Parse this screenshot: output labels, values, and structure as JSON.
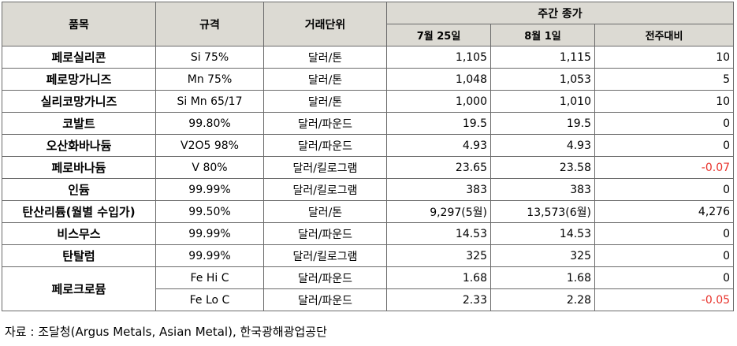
{
  "headers": {
    "item": "품목",
    "spec": "규격",
    "unit": "거래단위",
    "weekly": "주간 종가",
    "date1": "7월 25일",
    "date2": "8월 1일",
    "change": "전주대비"
  },
  "rows": [
    {
      "item": "페로실리콘",
      "spec": "Si 75%",
      "unit": "달러/톤",
      "p1": "1,105",
      "p2": "1,115",
      "chg": "10"
    },
    {
      "item": "페로망가니즈",
      "spec": "Mn 75%",
      "unit": "달러/톤",
      "p1": "1,048",
      "p2": "1,053",
      "chg": "5"
    },
    {
      "item": "실리코망가니즈",
      "spec": "Si Mn 65/17",
      "unit": "달러/톤",
      "p1": "1,000",
      "p2": "1,010",
      "chg": "10"
    },
    {
      "item": "코발트",
      "spec": "99.80%",
      "unit": "달러/파운드",
      "p1": "19.5",
      "p2": "19.5",
      "chg": "0"
    },
    {
      "item": "오산화바나듐",
      "spec": "V2O5 98%",
      "unit": "달러/파운드",
      "p1": "4.93",
      "p2": "4.93",
      "chg": "0"
    },
    {
      "item": "페로바나듐",
      "spec": "V 80%",
      "unit": "달러/킬로그램",
      "p1": "23.65",
      "p2": "23.58",
      "chg": "-0.07"
    },
    {
      "item": "인듐",
      "spec": "99.99%",
      "unit": "달러/킬로그램",
      "p1": "383",
      "p2": "383",
      "chg": "0"
    },
    {
      "item": "탄산리튬(월별 수입가)",
      "spec": "99.50%",
      "unit": "달러/톤",
      "p1": "9,297(5월)",
      "p2": "13,573(6월)",
      "chg": "4,276"
    },
    {
      "item": "비스무스",
      "spec": "99.99%",
      "unit": "달러/파운드",
      "p1": "14.53",
      "p2": "14.53",
      "chg": "0"
    },
    {
      "item": "탄탈럼",
      "spec": "99.99%",
      "unit": "달러/킬로그램",
      "p1": "325",
      "p2": "325",
      "chg": "0"
    }
  ],
  "ferrochrome": {
    "item": "페로크로뮴",
    "rows": [
      {
        "spec": "Fe Hi C",
        "unit": "달러/파운드",
        "p1": "1.68",
        "p2": "1.68",
        "chg": "0"
      },
      {
        "spec": "Fe Lo C",
        "unit": "달러/파운드",
        "p1": "2.33",
        "p2": "2.28",
        "chg": "-0.05"
      }
    ]
  },
  "colors": {
    "header_bg": "#dcdad3",
    "negative": "#e8322b",
    "border": "#6b6b6b"
  },
  "source": "자료 : 조달청(Argus Metals, Asian Metal), 한국광해광업공단"
}
